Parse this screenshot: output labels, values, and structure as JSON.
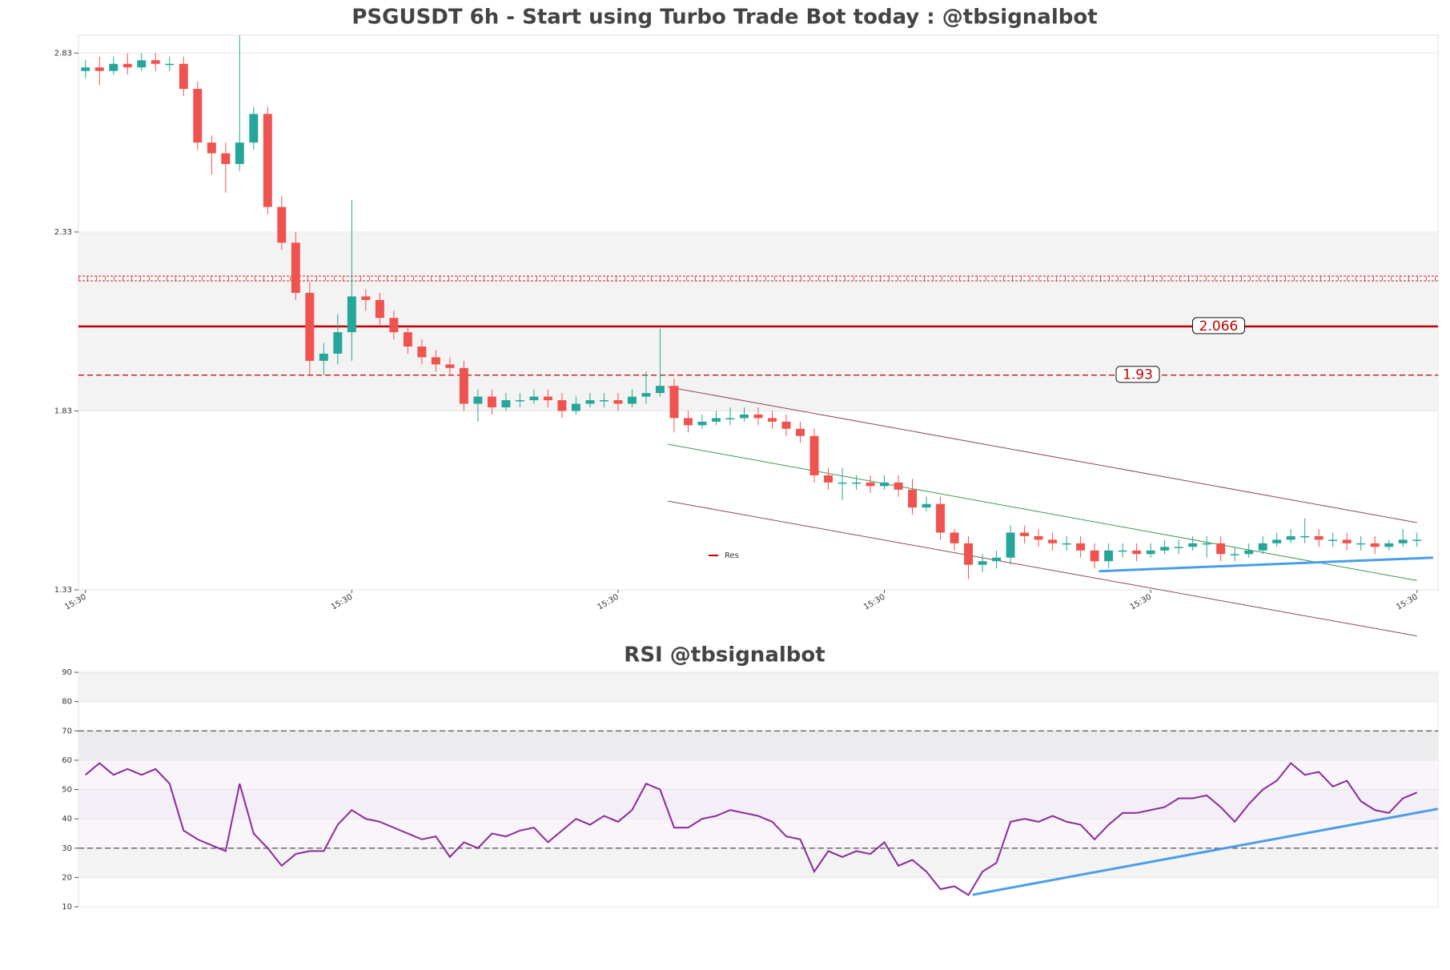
{
  "chart_data": [
    {
      "type": "candlestick",
      "title": "PSGUSDT 6h - Start using Turbo Trade Bot today : @tbsignalbot",
      "x": [
        0,
        2,
        4,
        6,
        8,
        10,
        12,
        14,
        16,
        18,
        20,
        22,
        24,
        26,
        28,
        30,
        32,
        34,
        36,
        38,
        40,
        42,
        44,
        46,
        48,
        50,
        52,
        54,
        56,
        58,
        60,
        62,
        64,
        66,
        68,
        70,
        72,
        74,
        76,
        78,
        80,
        82,
        84,
        86,
        88,
        90,
        92,
        94,
        96,
        98,
        100,
        102,
        104,
        106,
        108,
        110,
        112,
        114,
        116,
        118,
        120,
        122,
        124,
        126,
        128,
        130,
        132,
        134,
        136,
        138,
        140,
        142,
        144,
        146,
        148,
        150,
        152,
        154,
        156,
        158,
        160,
        162,
        164,
        166,
        168,
        170,
        172,
        174,
        176,
        178,
        180,
        182,
        184,
        186,
        188,
        190
      ],
      "open": [
        2.78,
        2.79,
        2.78,
        2.8,
        2.79,
        2.81,
        2.8,
        2.8,
        2.73,
        2.58,
        2.55,
        2.52,
        2.58,
        2.66,
        2.4,
        2.3,
        2.16,
        1.97,
        1.99,
        2.05,
        2.15,
        2.14,
        2.09,
        2.05,
        2.01,
        1.98,
        1.96,
        1.95,
        1.85,
        1.87,
        1.84,
        1.86,
        1.86,
        1.87,
        1.86,
        1.83,
        1.85,
        1.86,
        1.86,
        1.85,
        1.87,
        1.88,
        1.9,
        1.81,
        1.79,
        1.8,
        1.81,
        1.81,
        1.82,
        1.81,
        1.8,
        1.78,
        1.76,
        1.65,
        1.63,
        1.63,
        1.63,
        1.62,
        1.63,
        1.61,
        1.56,
        1.57,
        1.49,
        1.46,
        1.4,
        1.41,
        1.42,
        1.49,
        1.48,
        1.47,
        1.46,
        1.46,
        1.44,
        1.41,
        1.44,
        1.44,
        1.43,
        1.44,
        1.45,
        1.45,
        1.46,
        1.46,
        1.43,
        1.43,
        1.44,
        1.46,
        1.47,
        1.48,
        1.48,
        1.47,
        1.47,
        1.46,
        1.46,
        1.45,
        1.46,
        1.47
      ],
      "high": [
        2.81,
        2.82,
        2.82,
        2.83,
        2.83,
        2.83,
        2.82,
        2.82,
        2.75,
        2.6,
        2.58,
        2.88,
        2.68,
        2.68,
        2.43,
        2.33,
        2.19,
        2.02,
        2.1,
        2.42,
        2.17,
        2.16,
        2.11,
        2.07,
        2.03,
        2.0,
        1.98,
        1.97,
        1.89,
        1.89,
        1.88,
        1.88,
        1.89,
        1.89,
        1.88,
        1.87,
        1.88,
        1.88,
        1.88,
        1.89,
        1.94,
        2.06,
        1.92,
        1.83,
        1.82,
        1.83,
        1.84,
        1.84,
        1.84,
        1.83,
        1.82,
        1.8,
        1.78,
        1.67,
        1.67,
        1.65,
        1.65,
        1.65,
        1.65,
        1.64,
        1.59,
        1.59,
        1.5,
        1.48,
        1.43,
        1.44,
        1.51,
        1.51,
        1.5,
        1.49,
        1.48,
        1.48,
        1.46,
        1.46,
        1.46,
        1.46,
        1.46,
        1.47,
        1.47,
        1.48,
        1.48,
        1.48,
        1.45,
        1.46,
        1.48,
        1.49,
        1.5,
        1.53,
        1.5,
        1.49,
        1.49,
        1.48,
        1.48,
        1.47,
        1.5,
        1.49
      ],
      "low": [
        2.76,
        2.74,
        2.77,
        2.77,
        2.78,
        2.78,
        2.78,
        2.71,
        2.56,
        2.49,
        2.44,
        2.5,
        2.56,
        2.38,
        2.28,
        2.14,
        1.93,
        1.93,
        1.96,
        1.97,
        2.11,
        2.07,
        2.03,
        1.99,
        1.96,
        1.94,
        1.93,
        1.83,
        1.8,
        1.82,
        1.83,
        1.84,
        1.85,
        1.84,
        1.81,
        1.82,
        1.84,
        1.84,
        1.83,
        1.84,
        1.85,
        1.87,
        1.77,
        1.77,
        1.78,
        1.79,
        1.79,
        1.8,
        1.79,
        1.78,
        1.76,
        1.74,
        1.63,
        1.61,
        1.58,
        1.61,
        1.6,
        1.61,
        1.59,
        1.54,
        1.55,
        1.47,
        1.44,
        1.36,
        1.38,
        1.39,
        1.4,
        1.46,
        1.45,
        1.44,
        1.44,
        1.42,
        1.39,
        1.39,
        1.42,
        1.41,
        1.42,
        1.43,
        1.43,
        1.44,
        1.42,
        1.41,
        1.41,
        1.42,
        1.43,
        1.45,
        1.46,
        1.46,
        1.45,
        1.45,
        1.44,
        1.44,
        1.43,
        1.44,
        1.45,
        1.45
      ],
      "close": [
        2.79,
        2.78,
        2.8,
        2.79,
        2.81,
        2.8,
        2.8,
        2.73,
        2.58,
        2.55,
        2.52,
        2.58,
        2.66,
        2.4,
        2.3,
        2.16,
        1.97,
        1.99,
        2.05,
        2.15,
        2.14,
        2.09,
        2.05,
        2.01,
        1.98,
        1.96,
        1.95,
        1.85,
        1.87,
        1.84,
        1.86,
        1.86,
        1.87,
        1.86,
        1.83,
        1.85,
        1.86,
        1.86,
        1.85,
        1.87,
        1.88,
        1.9,
        1.81,
        1.79,
        1.8,
        1.81,
        1.81,
        1.82,
        1.81,
        1.8,
        1.78,
        1.76,
        1.65,
        1.63,
        1.63,
        1.63,
        1.62,
        1.63,
        1.61,
        1.56,
        1.57,
        1.49,
        1.46,
        1.4,
        1.41,
        1.42,
        1.49,
        1.48,
        1.47,
        1.46,
        1.46,
        1.44,
        1.41,
        1.44,
        1.44,
        1.43,
        1.44,
        1.45,
        1.45,
        1.46,
        1.46,
        1.43,
        1.43,
        1.44,
        1.46,
        1.47,
        1.48,
        1.48,
        1.47,
        1.47,
        1.46,
        1.46,
        1.45,
        1.46,
        1.47,
        1.47
      ],
      "up_color": "#26a69a",
      "down_color": "#ef5350",
      "xlim": [
        -1,
        193
      ],
      "ylim": [
        1.33,
        2.88
      ],
      "xticks": [
        {
          "value": 0,
          "label": "15:30"
        },
        {
          "value": 38,
          "label": "15:30"
        },
        {
          "value": 76,
          "label": "15:30"
        },
        {
          "value": 114,
          "label": "15:30"
        },
        {
          "value": 152,
          "label": "15:30"
        },
        {
          "value": 190,
          "label": "15:30"
        }
      ],
      "yticks": [
        1.33,
        1.83,
        2.33,
        2.83
      ],
      "bands": [
        {
          "from": 1.83,
          "to": 2.33,
          "color": "#f3f3f3"
        }
      ],
      "hlines": [
        {
          "value": 2.066,
          "label": "2.066",
          "name": "Res",
          "color": "#c00000",
          "style": "solid"
        },
        {
          "value": 1.93,
          "label": "1.93",
          "color": "#c00000",
          "style": "dashed"
        },
        {
          "value": 2.2,
          "color": "#d02020",
          "style": "hatched"
        }
      ],
      "lines": [
        {
          "x": [
            83.1,
            190
          ],
          "y": [
            1.897,
            1.518
          ],
          "color": "#8a4a5a",
          "linewidth": 1
        },
        {
          "x": [
            83.1,
            190
          ],
          "y": [
            1.737,
            1.356
          ],
          "color": "#3a9a4a",
          "linewidth": 1
        },
        {
          "x": [
            83.1,
            190
          ],
          "y": [
            1.578,
            1.201
          ],
          "color": "#8a4a5a",
          "linewidth": 1
        },
        {
          "x": [
            144.6,
            192.3
          ],
          "y": [
            1.382,
            1.42
          ],
          "color": "#4a9ee8",
          "linewidth": 3
        }
      ]
    },
    {
      "type": "line",
      "title": "RSI @tbsignalbot",
      "x": [
        0,
        2,
        4,
        6,
        8,
        10,
        12,
        14,
        16,
        18,
        20,
        22,
        24,
        26,
        28,
        30,
        32,
        34,
        36,
        38,
        40,
        42,
        44,
        46,
        48,
        50,
        52,
        54,
        56,
        58,
        60,
        62,
        64,
        66,
        68,
        70,
        72,
        74,
        76,
        78,
        80,
        82,
        84,
        86,
        88,
        90,
        92,
        94,
        96,
        98,
        100,
        102,
        104,
        106,
        108,
        110,
        112,
        114,
        116,
        118,
        120,
        122,
        124,
        126,
        128,
        130,
        132,
        134,
        136,
        138,
        140,
        142,
        144,
        146,
        148,
        150,
        152,
        154,
        156,
        158,
        160,
        162,
        164,
        166,
        168,
        170,
        172,
        174,
        176,
        178,
        180,
        182,
        184,
        186,
        188,
        190
      ],
      "series": [
        {
          "color": "#8b2a9b",
          "values": [
            55,
            59,
            55,
            57,
            55,
            57,
            52,
            36,
            33,
            31,
            29,
            52,
            35,
            30,
            24,
            28,
            29,
            29,
            38,
            43,
            40,
            39,
            37,
            35,
            33,
            34,
            27,
            32,
            30,
            35,
            34,
            36,
            37,
            32,
            36,
            40,
            38,
            41,
            39,
            43,
            52,
            50,
            37,
            37,
            40,
            41,
            43,
            42,
            41,
            39,
            34,
            33,
            22,
            29,
            27,
            29,
            28,
            32,
            24,
            26,
            22,
            16,
            17,
            14,
            22,
            25,
            39,
            40,
            39,
            41,
            39,
            38,
            33,
            38,
            42,
            42,
            43,
            44,
            47,
            47,
            48,
            44,
            39,
            45,
            50,
            53,
            59,
            55,
            56,
            51,
            53,
            46,
            43,
            42,
            47,
            49
          ]
        }
      ],
      "xlim": [
        -1,
        193
      ],
      "ylim": [
        10,
        90
      ],
      "yticks": [
        10,
        20,
        30,
        40,
        50,
        60,
        70,
        80,
        90
      ],
      "bands": [
        {
          "from": 80,
          "to": 90,
          "color": "#f3f3f3"
        },
        {
          "from": 60,
          "to": 70,
          "color": "#ececef"
        },
        {
          "from": 40,
          "to": 50,
          "color": "#f0f0f2"
        },
        {
          "from": 20,
          "to": 30,
          "color": "#f3f3f3"
        },
        {
          "from": 30,
          "to": 60,
          "color": "#f6eef8"
        }
      ],
      "hlines": [
        {
          "value": 70,
          "color": "#555555",
          "style": "dashed"
        },
        {
          "value": 30,
          "color": "#555555",
          "style": "dashed"
        }
      ],
      "lines": [
        {
          "x": [
            126.6,
            193
          ],
          "y": [
            14.1,
            43.4
          ],
          "color": "#4a9ee8",
          "linewidth": 3
        }
      ]
    }
  ]
}
